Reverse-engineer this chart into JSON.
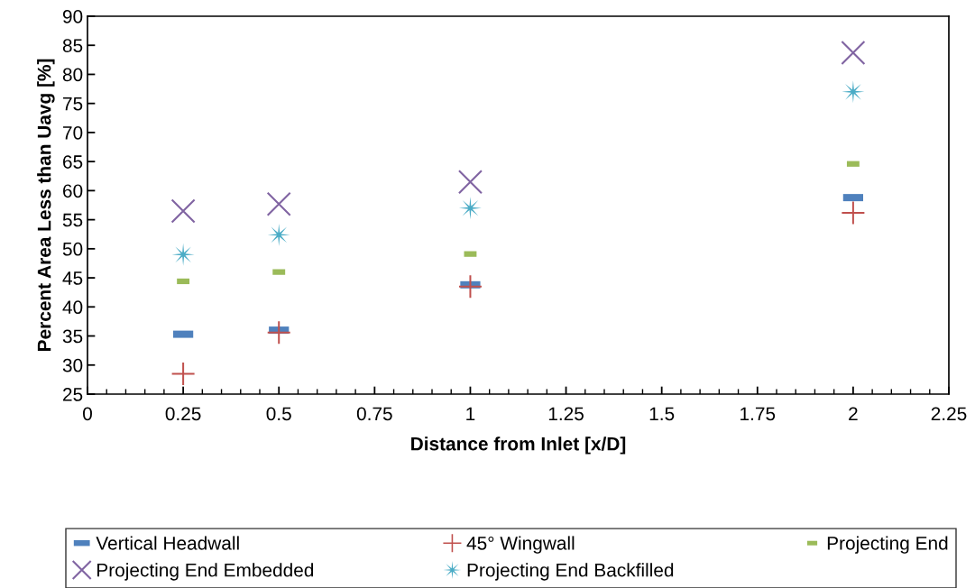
{
  "chart_data": {
    "type": "scatter",
    "xlabel": "Distance from Inlet [x/D]",
    "ylabel": "Percent Area Less than Uavg [%]",
    "x": [
      0.25,
      0.5,
      1,
      2
    ],
    "series": [
      {
        "name": "Vertical Headwall",
        "color": "#4f81bd",
        "values": [
          35.3,
          36.0,
          43.8,
          58.8
        ]
      },
      {
        "name": "45° Wingwall",
        "color": "#c0504d",
        "values": [
          28.5,
          35.6,
          43.5,
          56.2
        ]
      },
      {
        "name": "Projecting End",
        "color": "#9bbb59",
        "values": [
          44.4,
          46.0,
          49.1,
          64.6
        ]
      },
      {
        "name": "Projecting End Embedded",
        "color": "#8064a2",
        "marker": "cross",
        "values": [
          56.5,
          57.7,
          61.5,
          83.7
        ]
      },
      {
        "name": "Projecting End Backfilled",
        "color": "#4bacc6",
        "values": [
          49.0,
          52.4,
          57.0,
          77.0
        ]
      }
    ],
    "xlim": [
      0,
      2.25
    ],
    "xticks": [
      0,
      0.25,
      0.5,
      0.75,
      1,
      1.25,
      1.5,
      1.75,
      2,
      2.25
    ],
    "ylim": [
      25,
      90
    ],
    "yticks": [
      25,
      30,
      35,
      40,
      45,
      50,
      55,
      60,
      65,
      70,
      75,
      80,
      85,
      90
    ],
    "grid": false,
    "legend": "bottom"
  }
}
